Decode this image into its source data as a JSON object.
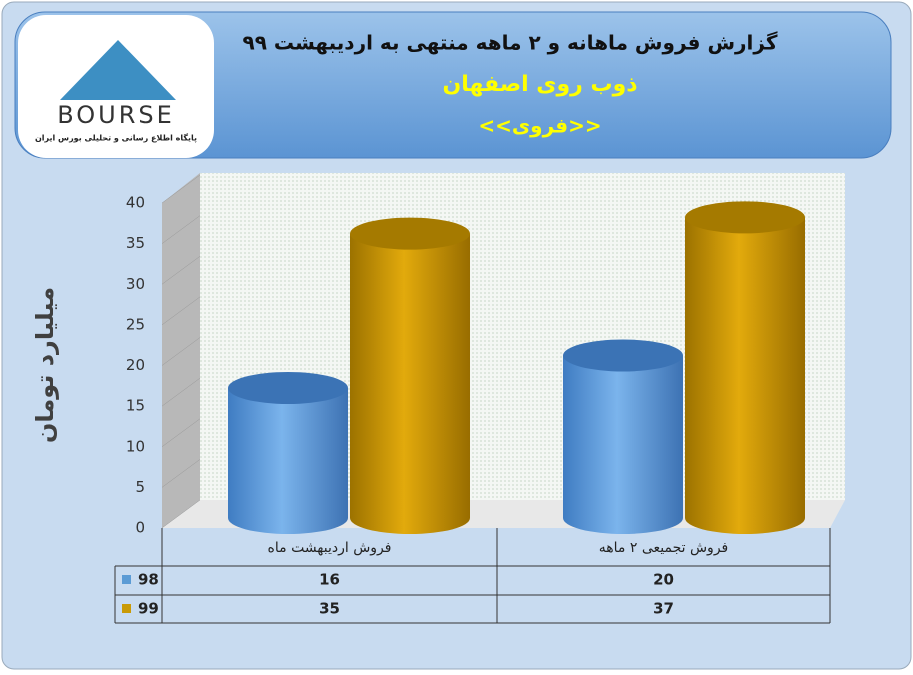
{
  "logo": {
    "name": "BOURSE",
    "tagline": "پایگاه اطلاع رسانی و تحلیلی بورس ایران"
  },
  "chart_data": {
    "type": "bar3d",
    "title": "گزارش فروش ماهانه و ۲ ماهه منتهی به اردیبهشت ۹۹",
    "subtitle": "ذوب روی اصفهان",
    "symbol": "<<فروی>>",
    "y_label": "میلیارد تومان",
    "categories": [
      "فروش اردیبهشت  ماه",
      "فروش تجمیعی ۲ ماهه"
    ],
    "series": [
      {
        "name": "98",
        "color": "#5b9bd5",
        "values": [
          16,
          20
        ]
      },
      {
        "name": "99",
        "color": "#c99a06",
        "values": [
          35,
          37
        ]
      }
    ],
    "ylim": [
      0,
      40
    ],
    "yticks": [
      0,
      5,
      10,
      15,
      20,
      25,
      30,
      35,
      40
    ],
    "data_table": true
  }
}
